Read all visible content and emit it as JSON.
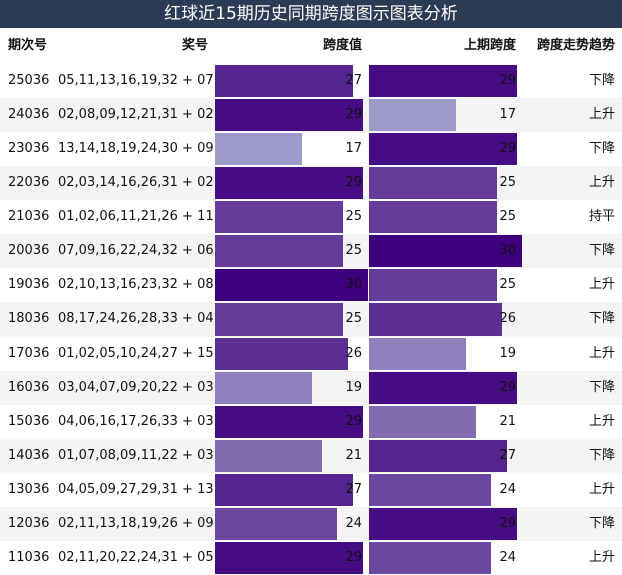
{
  "title": "红球近15期历史同期跨度图示图表分析",
  "bar_color_low": "#9e9ac8",
  "bar_color_high": "#3f007d",
  "table": {
    "columns": [
      "期次号",
      "奖号",
      "跨度值",
      "上期跨度",
      "跨度走势趋势"
    ],
    "rows": [
      [
        "25036",
        "05,11,13,16,19,32 + 07",
        27,
        29,
        "下降"
      ],
      [
        "24036",
        "02,08,09,12,21,31 + 02",
        29,
        17,
        "上升"
      ],
      [
        "23036",
        "13,14,18,19,24,30 + 09",
        17,
        29,
        "下降"
      ],
      [
        "22036",
        "02,03,14,16,26,31 + 02",
        29,
        25,
        "上升"
      ],
      [
        "21036",
        "01,02,06,11,21,26 + 11",
        25,
        25,
        "持平"
      ],
      [
        "20036",
        "07,09,16,22,24,32 + 06",
        25,
        30,
        "下降"
      ],
      [
        "19036",
        "02,10,13,16,23,32 + 08",
        30,
        25,
        "上升"
      ],
      [
        "18036",
        "08,17,24,26,28,33 + 04",
        25,
        26,
        "下降"
      ],
      [
        "17036",
        "01,02,05,10,24,27 + 15",
        26,
        19,
        "上升"
      ],
      [
        "16036",
        "03,04,07,09,20,22 + 03",
        19,
        29,
        "下降"
      ],
      [
        "15036",
        "04,06,16,17,26,33 + 03",
        29,
        21,
        "上升"
      ],
      [
        "14036",
        "01,07,08,09,11,22 + 03",
        21,
        27,
        "下降"
      ],
      [
        "13036",
        "04,05,09,27,29,31 + 13",
        27,
        24,
        "上升"
      ],
      [
        "12036",
        "02,11,13,18,19,26 + 09",
        24,
        29,
        "下降"
      ],
      [
        "11036",
        "02,11,20,22,24,31 + 05",
        29,
        24,
        "上升"
      ]
    ]
  }
}
